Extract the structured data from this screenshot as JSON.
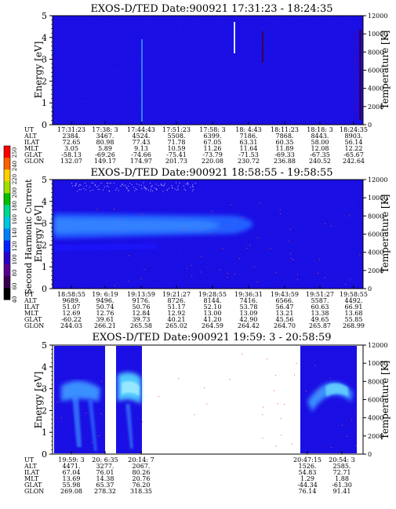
{
  "colorbar": {
    "label": "Second Harmonic Current",
    "ticks": [
      "40",
      "60",
      "80",
      "100",
      "120",
      "140",
      "160",
      "180",
      "200",
      "220",
      "240",
      "250"
    ],
    "colors": [
      "#000000",
      "#3a0050",
      "#5a0090",
      "#2a00c8",
      "#0020ff",
      "#0080ff",
      "#00c8e0",
      "#00d890",
      "#00c000",
      "#a0e000",
      "#ffd000",
      "#ff6000",
      "#ff0000"
    ]
  },
  "row_labels": [
    "UT",
    "ALT",
    "ILAT",
    "MLT",
    "GLAT",
    "GLON"
  ],
  "chart_data": [
    {
      "type": "heatmap",
      "title": "EXOS-D/TED   Date:900921  17:31:23 - 18:24:35",
      "ylabel": "Energy [eV]",
      "ylabel_right": "Temperature [K]",
      "ylim": [
        0,
        5
      ],
      "yticks": [
        "0",
        "1",
        "2",
        "3",
        "4",
        "5"
      ],
      "ylim_right": [
        0,
        12000
      ],
      "yticks_right": [
        "0",
        "2000",
        "4000",
        "6000",
        "8000",
        "10000",
        "12000"
      ],
      "columns": [
        {
          "UT": "17:31:23",
          "ALT": "2384.",
          "ILAT": "72.65",
          "MLT": "3.05",
          "GLAT": "-58.13",
          "GLON": "132.07"
        },
        {
          "UT": "17:38: 3",
          "ALT": "3467.",
          "ILAT": "80.98",
          "MLT": "5.89",
          "GLAT": "-69.26",
          "GLON": "149.17"
        },
        {
          "UT": "17:44:43",
          "ALT": "4524.",
          "ILAT": "77.43",
          "MLT": "9.13",
          "GLAT": "-74.66",
          "GLON": "174.97"
        },
        {
          "UT": "17:51:23",
          "ALT": "5508.",
          "ILAT": "71.78",
          "MLT": "10.59",
          "GLAT": "-75.41",
          "GLON": "201.73"
        },
        {
          "UT": "17:58: 3",
          "ALT": "6399.",
          "ILAT": "67.05",
          "MLT": "11.26",
          "GLAT": "-73.79",
          "GLON": "220.08"
        },
        {
          "UT": "18: 4:43",
          "ALT": "7186.",
          "ILAT": "63.31",
          "MLT": "11.64",
          "GLAT": "-71.53",
          "GLON": "230.72"
        },
        {
          "UT": "18:11:23",
          "ALT": "7868.",
          "ILAT": "60.35",
          "MLT": "11.89",
          "GLAT": "-69.33",
          "GLON": "236.88"
        },
        {
          "UT": "18:18: 3",
          "ALT": "8443.",
          "ILAT": "58.00",
          "MLT": "12.08",
          "GLAT": "-67.35",
          "GLON": "240.52"
        },
        {
          "UT": "18:24:35",
          "ALT": "8903.",
          "ILAT": "56.14",
          "MLT": "12.22",
          "GLAT": "-65.67",
          "GLON": "242.64"
        }
      ]
    },
    {
      "type": "heatmap",
      "title": "EXOS-D/TED   Date:900921  18:58:55 - 19:58:55",
      "ylabel": "Energy [eV]",
      "ylabel_right": "Temperature [K]",
      "ylim": [
        0,
        5
      ],
      "yticks": [
        "0",
        "1",
        "2",
        "3",
        "4",
        "5"
      ],
      "ylim_right": [
        0,
        12000
      ],
      "yticks_right": [
        "0",
        "2000",
        "4000",
        "6000",
        "8000",
        "10000",
        "12000"
      ],
      "columns": [
        {
          "UT": "18:58:55",
          "ALT": "9689.",
          "ILAT": "51.07",
          "MLT": "12.69",
          "GLAT": "-60.22",
          "GLON": "244.03"
        },
        {
          "UT": "19: 6:19",
          "ALT": "9496.",
          "ILAT": "50.74",
          "MLT": "12.76",
          "GLAT": "39.61",
          "GLON": "266.21"
        },
        {
          "UT": "19:13:59",
          "ALT": "9176.",
          "ILAT": "50.76",
          "MLT": "12.84",
          "GLAT": "39.73",
          "GLON": "265.58"
        },
        {
          "UT": "19:21:27",
          "ALT": "8726.",
          "ILAT": "51.17",
          "MLT": "12.92",
          "GLAT": "40.21",
          "GLON": "265.02"
        },
        {
          "UT": "19:28:55",
          "ALT": "8144.",
          "ILAT": "52.10",
          "MLT": "13.00",
          "GLAT": "41.20",
          "GLON": "264.59"
        },
        {
          "UT": "19:36:31",
          "ALT": "7416.",
          "ILAT": "53.78",
          "MLT": "13.09",
          "GLAT": "42.90",
          "GLON": "264.42"
        },
        {
          "UT": "19:43:59",
          "ALT": "6566.",
          "ILAT": "56.47",
          "MLT": "13.21",
          "GLAT": "45.56",
          "GLON": "264.70"
        },
        {
          "UT": "19:51:27",
          "ALT": "5587.",
          "ILAT": "60.63",
          "MLT": "13.38",
          "GLAT": "49.65",
          "GLON": "265.87"
        },
        {
          "UT": "19:58:55",
          "ALT": "4492.",
          "ILAT": "66.91",
          "MLT": "13.68",
          "GLAT": "55.85",
          "GLON": "268.99"
        }
      ]
    },
    {
      "type": "heatmap",
      "title": "EXOS-D/TED   Date:900921  19:59: 3 - 20:58:59",
      "ylabel": "Energy [eV]",
      "ylabel_right": "Temperature [K]",
      "ylim": [
        0,
        5
      ],
      "yticks": [
        "0",
        "1",
        "2",
        "3",
        "4",
        "5"
      ],
      "ylim_right": [
        0,
        12000
      ],
      "yticks_right": [
        "0",
        "2000",
        "4000",
        "6000",
        "8000",
        "10000",
        "12000"
      ],
      "columns": [
        {
          "UT": "19:59: 3",
          "ALT": "4471.",
          "ILAT": "67.04",
          "MLT": "13.69",
          "GLAT": "55.98",
          "GLON": "269.08"
        },
        {
          "UT": "20: 6:35",
          "ALT": "3277.",
          "ILAT": "76.01",
          "MLT": "14.38",
          "GLAT": "65.37",
          "GLON": "278.32"
        },
        {
          "UT": "20:14: 7",
          "ALT": "2067.",
          "ILAT": "80.26",
          "MLT": "20.76",
          "GLAT": "76.20",
          "GLON": "318.35"
        },
        {
          "UT": "20:47:15",
          "ALT": "1526.",
          "ILAT": "54.83",
          "MLT": "1.29",
          "GLAT": "-44.34",
          "GLON": "76.14"
        },
        {
          "UT": "20:54: 3",
          "ALT": "2585.",
          "ILAT": "72.71",
          "MLT": "1.88",
          "GLAT": "-61.30",
          "GLON": "91.41"
        }
      ]
    }
  ]
}
